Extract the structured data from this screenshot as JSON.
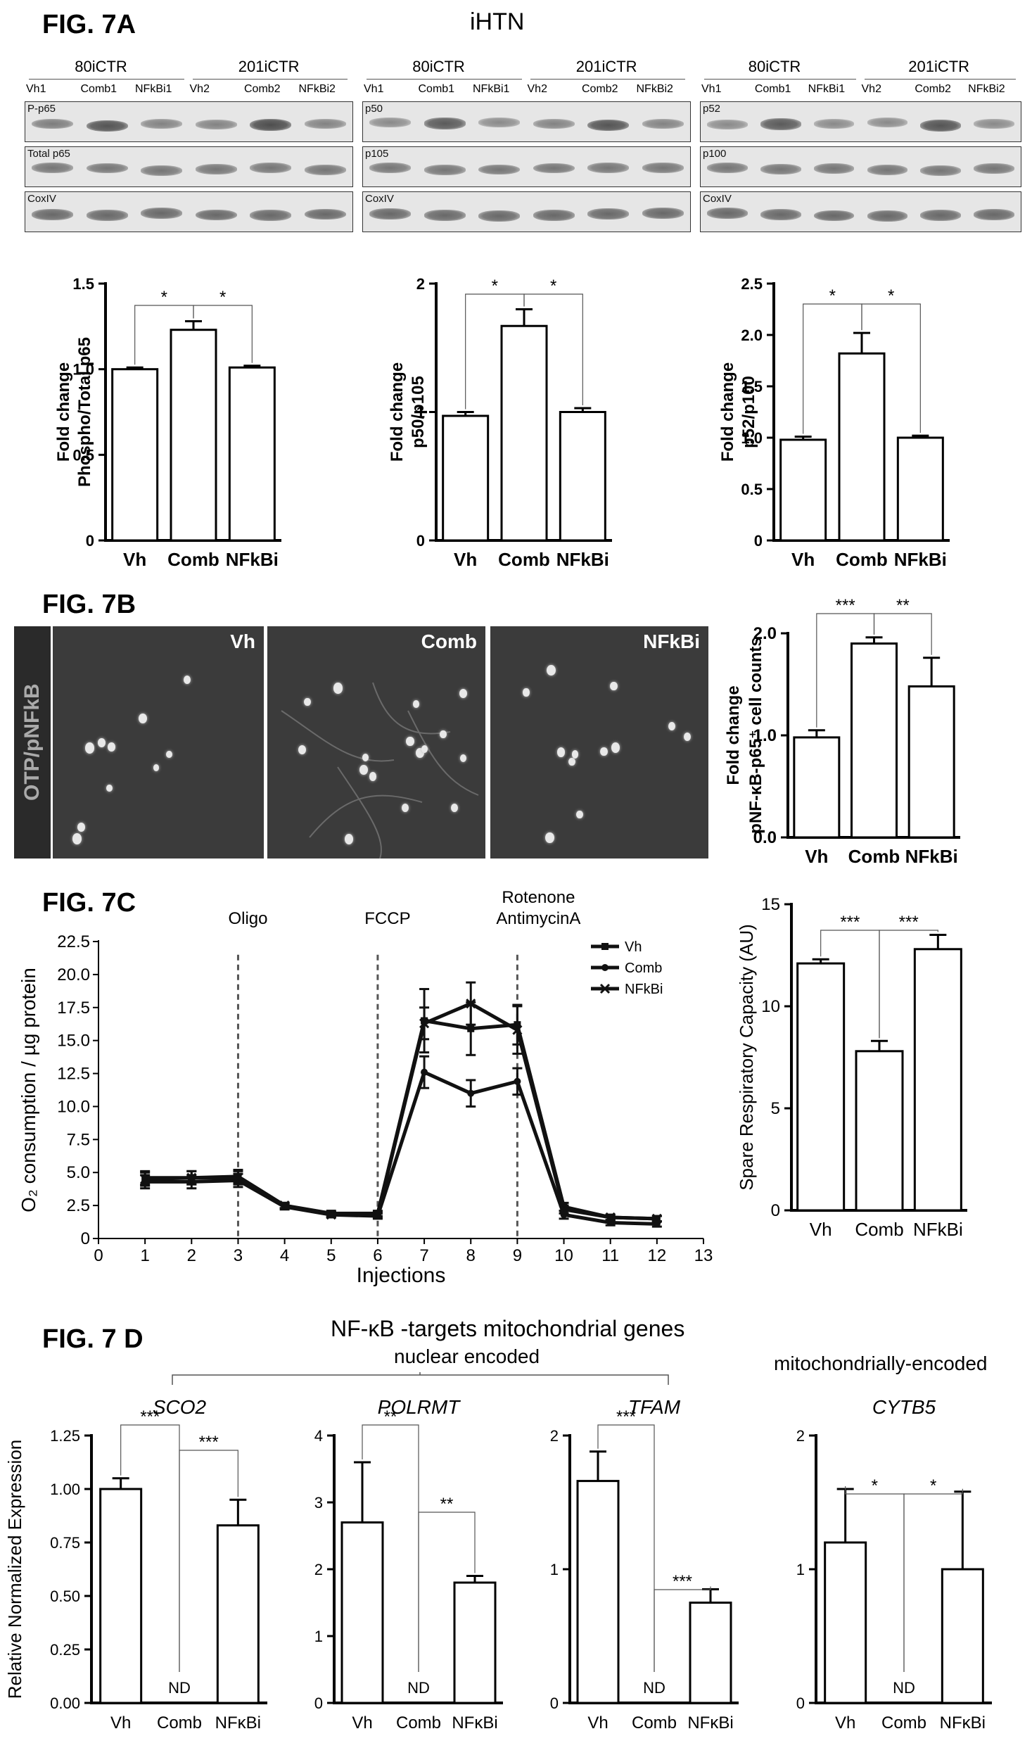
{
  "figA": {
    "label": "FIG. 7A",
    "title": "iHTN",
    "blots": [
      {
        "groups": [
          "80iCTR",
          "201iCTR"
        ],
        "lanes1": [
          "Vh1",
          "Comb1",
          "NFkBi1"
        ],
        "lanes2": [
          "Vh2",
          "Comb2",
          "NFkBi2"
        ],
        "rows": [
          {
            "name": "P-p65",
            "intensity": [
              0.55,
              0.85,
              0.5,
              0.5,
              0.9,
              0.5
            ]
          },
          {
            "name": "Total p65",
            "intensity": [
              0.6,
              0.6,
              0.6,
              0.6,
              0.6,
              0.6
            ]
          },
          {
            "name": "CoxIV",
            "intensity": [
              0.7,
              0.7,
              0.7,
              0.7,
              0.7,
              0.7
            ]
          }
        ]
      },
      {
        "groups": [
          "80iCTR",
          "201iCTR"
        ],
        "lanes1": [
          "Vh1",
          "Comb1",
          "NFkBi1"
        ],
        "lanes2": [
          "Vh2",
          "Comb2",
          "NFkBi2"
        ],
        "rows": [
          {
            "name": "p50",
            "intensity": [
              0.45,
              0.8,
              0.45,
              0.5,
              0.85,
              0.5
            ]
          },
          {
            "name": "p105",
            "intensity": [
              0.6,
              0.6,
              0.6,
              0.6,
              0.6,
              0.6
            ]
          },
          {
            "name": "CoxIV",
            "intensity": [
              0.7,
              0.7,
              0.7,
              0.7,
              0.7,
              0.7
            ]
          }
        ]
      },
      {
        "groups": [
          "80iCTR",
          "201iCTR"
        ],
        "lanes1": [
          "Vh1",
          "Comb1",
          "NFkBi1"
        ],
        "lanes2": [
          "Vh2",
          "Comb2",
          "NFkBi2"
        ],
        "rows": [
          {
            "name": "p52",
            "intensity": [
              0.45,
              0.8,
              0.45,
              0.45,
              0.85,
              0.45
            ]
          },
          {
            "name": "p100",
            "intensity": [
              0.6,
              0.6,
              0.6,
              0.6,
              0.6,
              0.6
            ]
          },
          {
            "name": "CoxIV",
            "intensity": [
              0.7,
              0.7,
              0.7,
              0.7,
              0.7,
              0.7
            ]
          }
        ]
      }
    ]
  },
  "figB": {
    "label": "FIG. 7B",
    "stain_label": "OTP/pNFkB",
    "panels": [
      "Vh",
      "Comb",
      "NFkBi"
    ]
  },
  "figC": {
    "label": "FIG. 7C"
  },
  "figD": {
    "label": "FIG. 7 D",
    "title": "NF-κB -targets mitochondrial genes",
    "nuclear_label": "nuclear encoded",
    "mito_label": "mitochondrially-encoded"
  },
  "chart_data": [
    {
      "id": "p65",
      "type": "bar",
      "categories": [
        "Vh",
        "Comb",
        "NFkBi"
      ],
      "values": [
        1.0,
        1.23,
        1.01
      ],
      "errors": [
        0.01,
        0.05,
        0.01
      ],
      "ylabel": [
        "Fold change",
        "Phospho/Total p65"
      ],
      "ylim": [
        0,
        1.5
      ],
      "yticks": [
        0,
        0.5,
        1.0,
        1.5
      ],
      "ytick_labels": [
        "0",
        "0.5",
        "1.0",
        "1.5"
      ],
      "sig": [
        {
          "a": 0,
          "b": 1,
          "label": "*"
        },
        {
          "a": 1,
          "b": 2,
          "label": "*"
        }
      ]
    },
    {
      "id": "p50",
      "type": "bar",
      "categories": [
        "Vh",
        "Comb",
        "NFkBi"
      ],
      "values": [
        0.97,
        1.67,
        1.0
      ],
      "errors": [
        0.03,
        0.13,
        0.03
      ],
      "ylabel": [
        "Fold change",
        "p50/p105"
      ],
      "ylim": [
        0,
        2
      ],
      "yticks": [
        0,
        1,
        2
      ],
      "ytick_labels": [
        "0",
        "1",
        "2"
      ],
      "sig": [
        {
          "a": 0,
          "b": 1,
          "label": "*"
        },
        {
          "a": 1,
          "b": 2,
          "label": "*"
        }
      ]
    },
    {
      "id": "p52",
      "type": "bar",
      "categories": [
        "Vh",
        "Comb",
        "NFkBi"
      ],
      "values": [
        0.98,
        1.82,
        1.0
      ],
      "errors": [
        0.03,
        0.2,
        0.02
      ],
      "ylabel": [
        "Fold change",
        "p52/p100"
      ],
      "ylim": [
        0,
        2.5
      ],
      "yticks": [
        0,
        0.5,
        1.0,
        1.5,
        2.0,
        2.5
      ],
      "ytick_labels": [
        "0",
        "0.5",
        "1.0",
        "1.5",
        "2.0",
        "2.5"
      ],
      "sig": [
        {
          "a": 0,
          "b": 1,
          "label": "*"
        },
        {
          "a": 1,
          "b": 2,
          "label": "*"
        }
      ]
    },
    {
      "id": "pnfkb",
      "type": "bar",
      "categories": [
        "Vh",
        "Comb",
        "NFkBi"
      ],
      "values": [
        0.98,
        1.9,
        1.48
      ],
      "errors": [
        0.07,
        0.06,
        0.28
      ],
      "ylabel": [
        "Fold change",
        "pNF-κB-p65⁺ cell counts"
      ],
      "ylim": [
        0,
        2.0
      ],
      "yticks": [
        0,
        1,
        2
      ],
      "ytick_labels": [
        "0.0",
        "1.0",
        "2.0"
      ],
      "sig": [
        {
          "a": 0,
          "b": 1,
          "label": "***"
        },
        {
          "a": 1,
          "b": 2,
          "label": "**"
        }
      ]
    },
    {
      "id": "ocr",
      "type": "line",
      "xlabel": "Injections",
      "ylabel": "O₂ consumption / µg protein",
      "xlim": [
        0,
        13
      ],
      "ylim": [
        0,
        22.5
      ],
      "xticks": [
        0,
        1,
        2,
        3,
        4,
        5,
        6,
        7,
        8,
        9,
        10,
        11,
        12,
        13
      ],
      "yticks": [
        0,
        2.5,
        5.0,
        7.5,
        10.0,
        12.5,
        15.0,
        17.5,
        20.0,
        22.5
      ],
      "ytick_labels": [
        "0",
        "2.5",
        "5.0",
        "7.5",
        "10.0",
        "12.5",
        "15.0",
        "17.5",
        "20.0",
        "22.5"
      ],
      "x": [
        1,
        2,
        3,
        4,
        5,
        6,
        7,
        8,
        9,
        10,
        11,
        12
      ],
      "series": [
        {
          "name": "Vh",
          "marker": "square",
          "values": [
            4.6,
            4.6,
            4.7,
            2.5,
            1.9,
            1.9,
            16.5,
            15.9,
            16.2,
            2.4,
            1.6,
            1.5
          ],
          "errors": [
            0.5,
            0.5,
            0.5,
            0.2,
            0.2,
            0.2,
            2.4,
            2.0,
            1.5,
            0.3,
            0.2,
            0.2
          ]
        },
        {
          "name": "Comb",
          "marker": "circle",
          "values": [
            4.3,
            4.3,
            4.4,
            2.4,
            1.8,
            1.7,
            12.6,
            11.0,
            11.9,
            1.8,
            1.2,
            1.1
          ],
          "errors": [
            0.5,
            0.5,
            0.5,
            0.2,
            0.2,
            0.2,
            1.2,
            1.0,
            1.0,
            0.3,
            0.2,
            0.2
          ]
        },
        {
          "name": "NFkBi",
          "marker": "x",
          "values": [
            4.5,
            4.6,
            4.6,
            2.5,
            1.8,
            1.8,
            16.3,
            17.8,
            15.8,
            2.2,
            1.6,
            1.5
          ],
          "errors": [
            0.5,
            0.5,
            0.5,
            0.2,
            0.2,
            0.2,
            1.2,
            1.6,
            1.8,
            0.3,
            0.2,
            0.2
          ]
        }
      ],
      "injections": [
        {
          "x": 3,
          "label": [
            "Oligo"
          ]
        },
        {
          "x": 6,
          "label": [
            "FCCP"
          ]
        },
        {
          "x": 9,
          "label": [
            "Rotenone",
            "AntimycinA"
          ]
        }
      ]
    },
    {
      "id": "src",
      "type": "bar",
      "categories": [
        "Vh",
        "Comb",
        "NFkBi"
      ],
      "values": [
        12.1,
        7.8,
        12.8
      ],
      "errors": [
        0.2,
        0.5,
        0.7
      ],
      "ylabel": [
        "Spare Respiratory Capacity (AU)"
      ],
      "ylim": [
        0,
        15
      ],
      "yticks": [
        0,
        5,
        10,
        15
      ],
      "ytick_labels": [
        "0",
        "5",
        "10",
        "15"
      ],
      "sig": [
        {
          "a": 0,
          "b": 1,
          "label": "***"
        },
        {
          "a": 1,
          "b": 2,
          "label": "***"
        }
      ]
    },
    {
      "id": "sco2",
      "type": "bar",
      "title": "SCO2",
      "categories": [
        "Vh",
        "Comb",
        "NFκBi"
      ],
      "values": [
        1.0,
        0,
        0.83
      ],
      "errors": [
        0.05,
        0,
        0.12
      ],
      "nd": [
        false,
        true,
        false
      ],
      "nd_label": "ND",
      "ylabel": [
        "Relative Normalized Expression"
      ],
      "ylim": [
        0,
        1.25
      ],
      "yticks": [
        0,
        0.25,
        0.5,
        0.75,
        1.0,
        1.25
      ],
      "ytick_labels": [
        "0.00",
        "0.25",
        "0.50",
        "0.75",
        "1.00",
        "1.25"
      ],
      "sig": [
        {
          "a": 0,
          "b": 1,
          "label": "***"
        },
        {
          "a": 1,
          "b": 2,
          "label": "***"
        }
      ]
    },
    {
      "id": "polrmt",
      "type": "bar",
      "title": "POLRMT",
      "categories": [
        "Vh",
        "Comb",
        "NFκBi"
      ],
      "values": [
        2.7,
        0,
        1.8
      ],
      "errors": [
        0.9,
        0,
        0.1
      ],
      "nd": [
        false,
        true,
        false
      ],
      "nd_label": "ND",
      "ylim": [
        0,
        4
      ],
      "yticks": [
        0,
        1,
        2,
        3,
        4
      ],
      "ytick_labels": [
        "0",
        "1",
        "2",
        "3",
        "4"
      ],
      "sig": [
        {
          "a": 0,
          "b": 1,
          "label": "**"
        },
        {
          "a": 1,
          "b": 2,
          "label": "**"
        }
      ]
    },
    {
      "id": "tfam",
      "type": "bar",
      "title": "TFAM",
      "categories": [
        "Vh",
        "Comb",
        "NFκBi"
      ],
      "values": [
        1.66,
        0,
        0.75
      ],
      "errors": [
        0.22,
        0,
        0.1
      ],
      "nd": [
        false,
        true,
        false
      ],
      "nd_label": "ND",
      "ylim": [
        0,
        2
      ],
      "yticks": [
        0,
        1,
        2
      ],
      "ytick_labels": [
        "0",
        "1",
        "2"
      ],
      "sig": [
        {
          "a": 0,
          "b": 1,
          "label": "***"
        },
        {
          "a": 1,
          "b": 2,
          "label": "***"
        }
      ]
    },
    {
      "id": "cytb5",
      "type": "bar",
      "title": "CYTB5",
      "categories": [
        "Vh",
        "Comb",
        "NFκBi"
      ],
      "values": [
        1.2,
        0,
        1.0
      ],
      "errors": [
        0.4,
        0,
        0.58
      ],
      "nd": [
        false,
        true,
        false
      ],
      "nd_label": "ND",
      "ylim": [
        0,
        2
      ],
      "yticks": [
        0,
        1,
        2
      ],
      "ytick_labels": [
        "0",
        "1",
        "2"
      ],
      "sig": [
        {
          "a": 0,
          "b": 1,
          "label": "*"
        },
        {
          "a": 1,
          "b": 2,
          "label": "*"
        }
      ]
    }
  ]
}
